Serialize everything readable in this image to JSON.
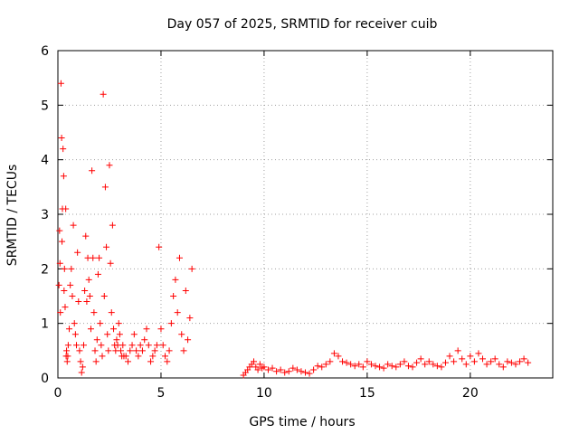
{
  "chart_data": {
    "type": "scatter",
    "title": "Day 057 of 2025, SRMTID for receiver cuib",
    "xlabel": "GPS time / hours",
    "ylabel": "SRMTID / TECUs",
    "xlim": [
      0,
      24
    ],
    "ylim": [
      0,
      6
    ],
    "x_ticks": [
      0,
      5,
      10,
      15,
      20
    ],
    "y_ticks": [
      0,
      1,
      2,
      3,
      4,
      5,
      6
    ],
    "grid": true,
    "marker": "+",
    "series": [
      {
        "name": "SRMTID",
        "color": "#ff0000",
        "x": [
          0.05,
          0.08,
          0.1,
          0.12,
          0.15,
          0.18,
          0.2,
          0.22,
          0.25,
          0.28,
          0.3,
          0.32,
          0.35,
          0.38,
          0.4,
          0.42,
          0.45,
          0.48,
          0.5,
          0.55,
          0.6,
          0.65,
          0.7,
          0.75,
          0.8,
          0.85,
          0.9,
          0.95,
          1.0,
          1.05,
          1.1,
          1.15,
          1.2,
          1.25,
          1.3,
          1.35,
          1.4,
          1.45,
          1.5,
          1.55,
          1.6,
          1.65,
          1.7,
          1.75,
          1.8,
          1.85,
          1.9,
          1.95,
          2.0,
          2.05,
          2.1,
          2.15,
          2.2,
          2.25,
          2.3,
          2.35,
          2.4,
          2.45,
          2.5,
          2.55,
          2.6,
          2.65,
          2.7,
          2.75,
          2.8,
          2.85,
          2.9,
          2.95,
          3.0,
          3.05,
          3.1,
          3.15,
          3.2,
          3.3,
          3.4,
          3.5,
          3.6,
          3.7,
          3.8,
          3.9,
          4.0,
          4.1,
          4.2,
          4.3,
          4.4,
          4.5,
          4.6,
          4.7,
          4.8,
          4.9,
          5.0,
          5.1,
          5.2,
          5.3,
          5.4,
          5.5,
          5.6,
          5.7,
          5.8,
          5.9,
          6.0,
          6.1,
          6.2,
          6.3,
          6.4,
          6.5,
          9.0,
          9.1,
          9.2,
          9.3,
          9.4,
          9.5,
          9.6,
          9.7,
          9.8,
          9.9,
          10.0,
          10.2,
          10.4,
          10.6,
          10.8,
          11.0,
          11.2,
          11.4,
          11.6,
          11.8,
          12.0,
          12.2,
          12.4,
          12.6,
          12.8,
          13.0,
          13.2,
          13.4,
          13.6,
          13.8,
          14.0,
          14.2,
          14.4,
          14.6,
          14.8,
          15.0,
          15.2,
          15.4,
          15.6,
          15.8,
          16.0,
          16.2,
          16.4,
          16.6,
          16.8,
          17.0,
          17.2,
          17.4,
          17.6,
          17.8,
          18.0,
          18.2,
          18.4,
          18.6,
          18.8,
          19.0,
          19.2,
          19.4,
          19.6,
          19.8,
          20.0,
          20.2,
          20.4,
          20.6,
          20.8,
          21.0,
          21.2,
          21.4,
          21.6,
          21.8,
          22.0,
          22.2,
          22.4,
          22.6,
          22.8
        ],
        "y": [
          1.7,
          2.7,
          2.1,
          1.2,
          5.4,
          4.4,
          2.5,
          3.1,
          4.2,
          3.7,
          1.6,
          2.0,
          1.3,
          3.1,
          0.4,
          0.5,
          0.3,
          0.4,
          0.6,
          0.9,
          1.7,
          2.0,
          1.5,
          2.8,
          1.0,
          0.8,
          0.6,
          2.3,
          1.4,
          0.5,
          0.3,
          0.1,
          0.2,
          0.6,
          1.6,
          2.6,
          1.4,
          2.2,
          1.8,
          1.5,
          0.9,
          3.8,
          2.2,
          1.2,
          0.5,
          0.3,
          0.7,
          1.9,
          2.2,
          1.0,
          0.6,
          0.4,
          5.2,
          1.5,
          3.5,
          2.4,
          0.8,
          0.5,
          3.9,
          2.1,
          1.2,
          2.8,
          0.9,
          0.6,
          0.5,
          0.7,
          0.6,
          1.0,
          0.8,
          0.5,
          0.4,
          0.6,
          0.4,
          0.4,
          0.3,
          0.5,
          0.6,
          0.8,
          0.5,
          0.4,
          0.6,
          0.5,
          0.7,
          0.9,
          0.6,
          0.3,
          0.4,
          0.5,
          0.6,
          2.4,
          0.9,
          0.6,
          0.4,
          0.3,
          0.5,
          1.0,
          1.5,
          1.8,
          1.2,
          2.2,
          0.8,
          0.5,
          1.6,
          0.7,
          1.1,
          2.0,
          0.05,
          0.1,
          0.15,
          0.2,
          0.25,
          0.3,
          0.2,
          0.15,
          0.25,
          0.18,
          0.2,
          0.15,
          0.18,
          0.12,
          0.15,
          0.1,
          0.12,
          0.18,
          0.15,
          0.12,
          0.1,
          0.08,
          0.15,
          0.22,
          0.2,
          0.25,
          0.3,
          0.45,
          0.4,
          0.3,
          0.28,
          0.25,
          0.22,
          0.25,
          0.2,
          0.3,
          0.25,
          0.22,
          0.2,
          0.18,
          0.25,
          0.22,
          0.2,
          0.25,
          0.3,
          0.22,
          0.2,
          0.28,
          0.35,
          0.25,
          0.3,
          0.25,
          0.22,
          0.2,
          0.28,
          0.4,
          0.3,
          0.5,
          0.35,
          0.25,
          0.4,
          0.3,
          0.45,
          0.35,
          0.25,
          0.3,
          0.35,
          0.25,
          0.2,
          0.3,
          0.28,
          0.25,
          0.3,
          0.35,
          0.28
        ]
      }
    ]
  }
}
